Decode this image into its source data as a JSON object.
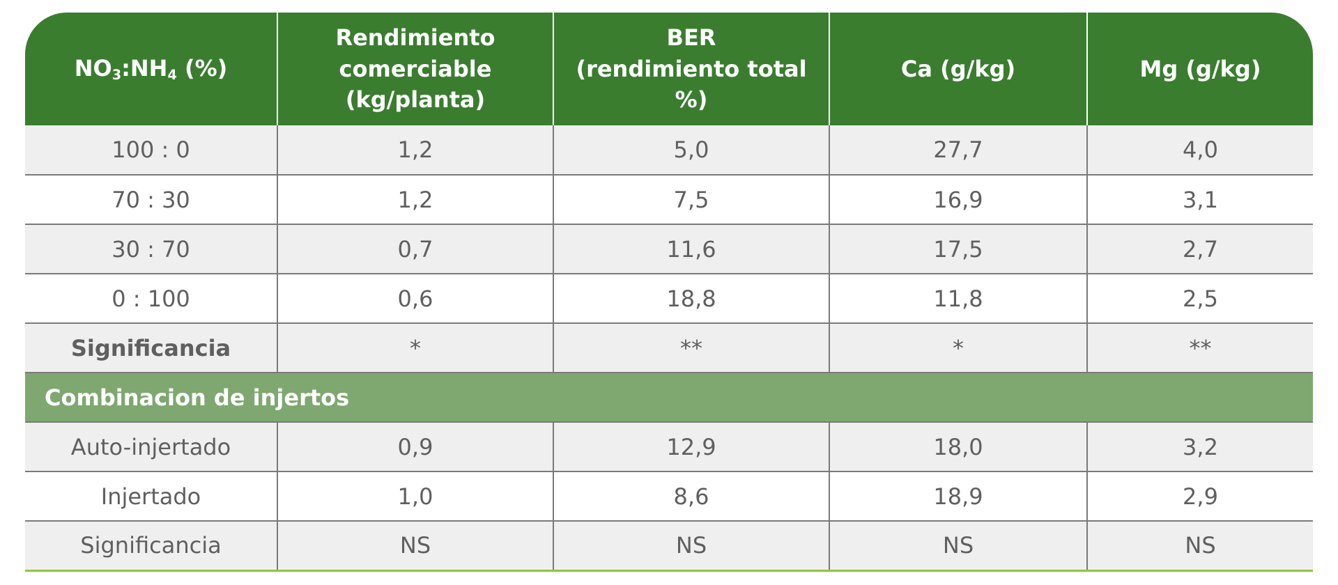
{
  "header": {
    "col1_main": "NO",
    "col1_sub1": "3",
    "col1_mid": ":NH",
    "col1_sub2": "4",
    "col1_end": " (%)",
    "col2_line1": "Rendimiento",
    "col2_line2": "comerciable",
    "col2_line3": "(kg/planta)",
    "col3_line1": "BER",
    "col3_line2": "(rendimiento total %)",
    "col4": "Ca (g/kg)",
    "col5": "Mg (g/kg)"
  },
  "rows": [
    [
      "100 : 0",
      "1,2",
      "5,0",
      "27,7",
      "4,0"
    ],
    [
      "70 : 30",
      "1,2",
      "7,5",
      "16,9",
      "3,1"
    ],
    [
      "30 : 70",
      "0,7",
      "11,6",
      "17,5",
      "2,7"
    ],
    [
      "0 : 100",
      "0,6",
      "18,8",
      "11,8",
      "2,5"
    ],
    [
      "Significancia",
      "*",
      "**",
      "*",
      "**"
    ]
  ],
  "section": "Combinacion de injertos",
  "rows2": [
    [
      "Auto-injertado",
      "0,9",
      "12,9",
      "18,0",
      "3,2"
    ],
    [
      "Injertado",
      "1,0",
      "8,6",
      "18,9",
      "2,9"
    ],
    [
      "Significancia",
      "NS",
      "NS",
      "NS",
      "NS"
    ]
  ]
}
